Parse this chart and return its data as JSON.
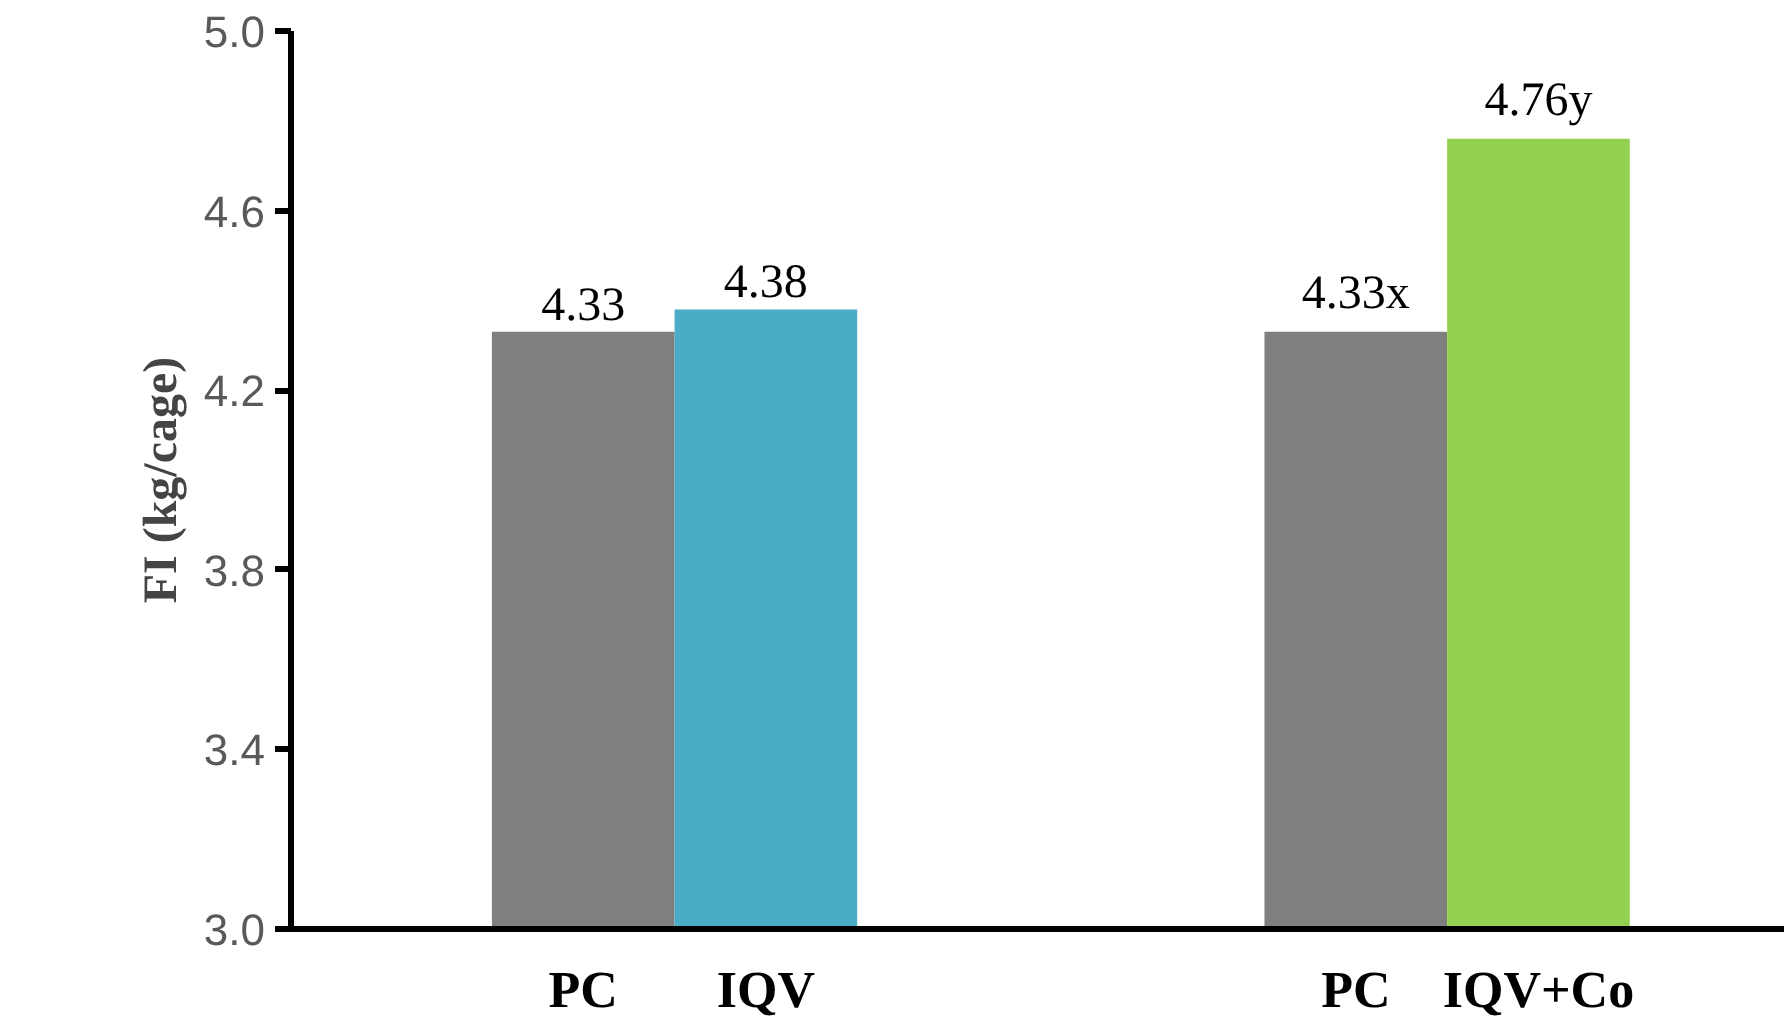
{
  "chart_data": {
    "type": "bar",
    "ylabel": "FI (kg/cage)",
    "categories": [
      "PC",
      "IQV",
      "PC",
      "IQV+Co"
    ],
    "values": [
      4.33,
      4.38,
      4.33,
      4.76
    ],
    "colors": [
      "#7f7f7f",
      "#4bacc6",
      "#7f7f7f",
      "#92d050"
    ],
    "value_labels": [
      "4.33",
      "4.38",
      "4.33x",
      "4.76y"
    ],
    "ylim": [
      3.0,
      5.0
    ],
    "yticks": [
      {
        "value": 3.0,
        "label": "3.0"
      },
      {
        "value": 3.4,
        "label": "3.4"
      },
      {
        "value": 3.8,
        "label": "3.8"
      },
      {
        "value": 4.2,
        "label": "4.2"
      },
      {
        "value": 4.6,
        "label": "4.6"
      },
      {
        "value": 5.0,
        "label": "5.0"
      }
    ],
    "grid": false
  }
}
